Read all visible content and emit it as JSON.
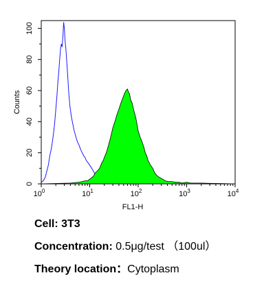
{
  "chart_data": {
    "type": "area",
    "xlabel": "FL1-H",
    "ylabel": "Counts",
    "xscale": "log",
    "xlim": [
      1,
      10000
    ],
    "ylim": [
      0,
      105
    ],
    "x_ticks": [
      {
        "base": "10",
        "exp": "0",
        "value": 1
      },
      {
        "base": "10",
        "exp": "1",
        "value": 10
      },
      {
        "base": "10",
        "exp": "2",
        "value": 100
      },
      {
        "base": "10",
        "exp": "3",
        "value": 1000
      },
      {
        "base": "10",
        "exp": "4",
        "value": 10000
      }
    ],
    "y_ticks": [
      "0",
      "20",
      "40",
      "60",
      "80",
      "100"
    ],
    "series": [
      {
        "kind": "control",
        "color": "#1a1aff",
        "fill": "none",
        "x": [
          1.0,
          1.1,
          1.2,
          1.3,
          1.4,
          1.5,
          1.6,
          1.7,
          1.8,
          1.9,
          2.0,
          2.1,
          2.2,
          2.3,
          2.4,
          2.5,
          2.6,
          2.7,
          2.8,
          2.9,
          3.0,
          3.1,
          3.2,
          3.3,
          3.5,
          3.7,
          3.9,
          4.2,
          4.5,
          4.8,
          5.2,
          5.6,
          6.0,
          6.5,
          7.0,
          7.5,
          8.0,
          8.5,
          9.0,
          10.0,
          11.0,
          12.0,
          13.0,
          14.0,
          15.0,
          16.0,
          17.0
        ],
        "y": [
          1,
          2,
          4,
          8,
          12,
          18,
          22,
          27,
          33,
          40,
          48,
          56,
          65,
          72,
          80,
          87,
          90,
          88,
          95,
          104,
          100,
          92,
          88,
          82,
          70,
          58,
          50,
          43,
          38,
          34,
          30,
          27,
          25,
          22,
          20,
          18,
          17,
          15,
          14,
          12,
          10,
          8,
          6,
          4,
          3,
          2,
          1
        ]
      },
      {
        "kind": "sample",
        "color": "#000000",
        "fill": "#00ff00",
        "x": [
          1,
          4,
          6,
          7,
          8,
          9,
          10,
          11,
          12,
          13,
          14,
          15,
          16,
          17,
          18,
          19,
          20,
          22,
          24,
          26,
          28,
          30,
          33,
          36,
          40,
          44,
          48,
          52,
          56,
          60,
          63,
          66,
          70,
          75,
          80,
          85,
          90,
          95,
          100,
          110,
          120,
          130,
          140,
          150,
          160,
          180,
          200,
          220,
          250,
          280,
          320,
          360,
          420,
          500,
          600,
          700,
          800,
          1000,
          1200,
          1500,
          2000,
          3000,
          5000,
          10000
        ],
        "y": [
          0,
          0.5,
          1,
          1.5,
          2,
          2,
          3,
          4,
          5,
          7,
          8,
          9,
          10,
          12,
          14,
          15,
          17,
          20,
          24,
          28,
          32,
          36,
          40,
          44,
          48,
          52,
          55,
          58,
          60,
          61,
          59,
          58,
          54,
          52,
          48,
          45,
          42,
          38,
          34,
          30,
          27,
          24,
          20,
          18,
          15,
          12,
          10,
          7,
          5,
          4,
          3,
          2,
          1.5,
          1.5,
          1,
          1,
          0.5,
          1,
          0.5,
          0.5,
          0.5,
          0.3,
          0.2,
          0
        ]
      }
    ]
  },
  "captions": [
    {
      "label": "Cell: ",
      "value": "3T3"
    },
    {
      "label": "Concentration: ",
      "value": "0.5μg/test （100ul）"
    },
    {
      "label": "Theory location：",
      "value": "Cytoplasm"
    }
  ]
}
